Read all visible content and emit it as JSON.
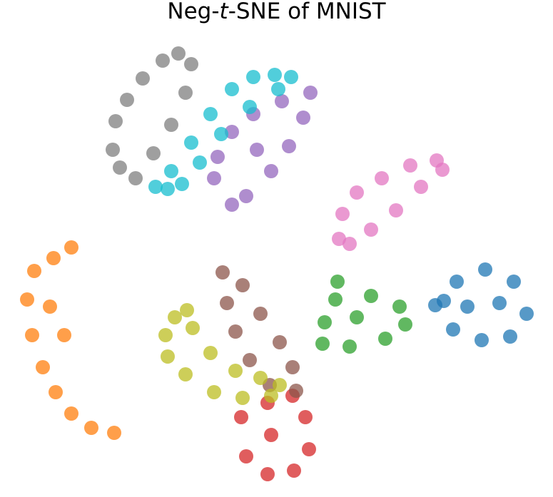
{
  "chart_data": {
    "type": "scatter",
    "title": {
      "prefix": "Neg-",
      "italic": "t",
      "suffix": "-SNE of MNIST"
    },
    "xlabel": "",
    "ylabel": "",
    "axes_visible": false,
    "grid": false,
    "legend": "none",
    "xlim": [
      0,
      775
    ],
    "ylim": [
      697,
      40
    ],
    "series": [
      {
        "color": "#1f77b4",
        "points": [
          [
            622,
            422
          ],
          [
            640,
            395
          ],
          [
            680,
            378
          ],
          [
            720,
            395
          ],
          [
            738,
            440
          ],
          [
            715,
            472
          ],
          [
            675,
            477
          ],
          [
            635,
            462
          ],
          [
            655,
            430
          ],
          [
            700,
            425
          ],
          [
            610,
            428
          ]
        ]
      },
      {
        "color": "#ff7f0e",
        "points": [
          [
            100,
            347
          ],
          [
            75,
            362
          ],
          [
            48,
            380
          ],
          [
            38,
            420
          ],
          [
            45,
            470
          ],
          [
            60,
            515
          ],
          [
            78,
            550
          ],
          [
            100,
            580
          ],
          [
            128,
            600
          ],
          [
            160,
            607
          ],
          [
            90,
            470
          ],
          [
            70,
            430
          ]
        ]
      },
      {
        "color": "#2ca02c",
        "points": [
          [
            473,
            395
          ],
          [
            470,
            420
          ],
          [
            455,
            452
          ],
          [
            452,
            482
          ],
          [
            490,
            486
          ],
          [
            540,
            475
          ],
          [
            568,
            455
          ],
          [
            560,
            430
          ],
          [
            520,
            415
          ],
          [
            500,
            445
          ]
        ]
      },
      {
        "color": "#d62728",
        "points": [
          [
            338,
            585
          ],
          [
            375,
            565
          ],
          [
            410,
            555
          ],
          [
            428,
            585
          ],
          [
            433,
            630
          ],
          [
            412,
            660
          ],
          [
            375,
            665
          ],
          [
            345,
            640
          ],
          [
            380,
            610
          ]
        ]
      },
      {
        "color": "#9467bd",
        "points": [
          [
            300,
            250
          ],
          [
            305,
            220
          ],
          [
            325,
            185
          ],
          [
            355,
            160
          ],
          [
            395,
            142
          ],
          [
            435,
            130
          ],
          [
            425,
            165
          ],
          [
            405,
            205
          ],
          [
            380,
            240
          ],
          [
            345,
            275
          ],
          [
            325,
            287
          ],
          [
            360,
            210
          ]
        ]
      },
      {
        "color": "#8c564b",
        "points": [
          [
            312,
            382
          ],
          [
            340,
            400
          ],
          [
            365,
            440
          ],
          [
            392,
            480
          ],
          [
            410,
            515
          ],
          [
            415,
            548
          ],
          [
            378,
            540
          ],
          [
            350,
            505
          ],
          [
            330,
            465
          ],
          [
            318,
            425
          ]
        ]
      },
      {
        "color": "#e377c2",
        "points": [
          [
            475,
            335
          ],
          [
            480,
            300
          ],
          [
            500,
            270
          ],
          [
            535,
            250
          ],
          [
            575,
            232
          ],
          [
            612,
            225
          ],
          [
            620,
            238
          ],
          [
            590,
            262
          ],
          [
            555,
            295
          ],
          [
            520,
            322
          ],
          [
            490,
            342
          ]
        ]
      },
      {
        "color": "#7f7f7f",
        "points": [
          [
            158,
            210
          ],
          [
            162,
            170
          ],
          [
            178,
            140
          ],
          [
            200,
            110
          ],
          [
            228,
            85
          ],
          [
            250,
            75
          ],
          [
            268,
            90
          ],
          [
            260,
            130
          ],
          [
            240,
            175
          ],
          [
            215,
            215
          ],
          [
            190,
            250
          ],
          [
            168,
            235
          ]
        ]
      },
      {
        "color": "#bcbd22",
        "points": [
          [
            232,
            470
          ],
          [
            245,
            445
          ],
          [
            262,
            435
          ],
          [
            270,
            460
          ],
          [
            295,
            495
          ],
          [
            330,
            520
          ],
          [
            365,
            530
          ],
          [
            392,
            540
          ],
          [
            380,
            555
          ],
          [
            340,
            558
          ],
          [
            300,
            550
          ],
          [
            260,
            525
          ],
          [
            235,
            500
          ]
        ]
      },
      {
        "color": "#17becf",
        "points": [
          [
            218,
            262
          ],
          [
            240,
            240
          ],
          [
            268,
            200
          ],
          [
            295,
            160
          ],
          [
            325,
            125
          ],
          [
            355,
            108
          ],
          [
            385,
            105
          ],
          [
            408,
            108
          ],
          [
            390,
            125
          ],
          [
            350,
            150
          ],
          [
            310,
            188
          ],
          [
            280,
            228
          ],
          [
            255,
            258
          ],
          [
            235,
            265
          ]
        ]
      }
    ]
  }
}
